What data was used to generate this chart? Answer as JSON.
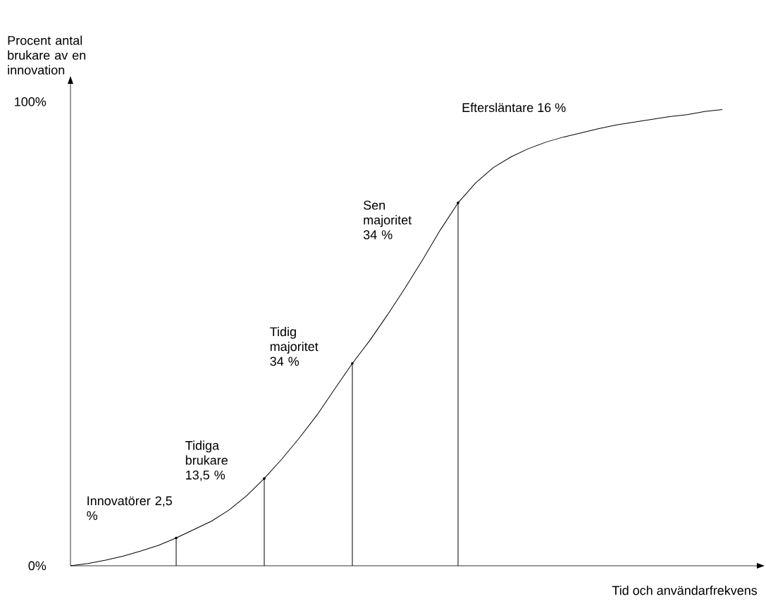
{
  "chart_data": {
    "type": "line",
    "xlabel": "Tid och användarfrekvens",
    "ylabel": "Procent antal brukare av en innovation",
    "categories": [
      null,
      null,
      null,
      null,
      null,
      null,
      null,
      null,
      null,
      null,
      null,
      null,
      null,
      null,
      null,
      null,
      null,
      null,
      null,
      null,
      null,
      null,
      null,
      null,
      null,
      null,
      null,
      null,
      null,
      null,
      null,
      null,
      null,
      null,
      null,
      null,
      null,
      null
    ],
    "series": [
      {
        "color": "#000000",
        "values": [
          0,
          0.5,
          1.2,
          2.1,
          3.2,
          4.4,
          6.0,
          7.8,
          9.6,
          12.0,
          15.1,
          18.8,
          23.0,
          27.6,
          32.5,
          38.1,
          43.6,
          48.6,
          54.1,
          59.9,
          66.0,
          72.4,
          78.2,
          82.5,
          85.8,
          88.1,
          89.9,
          91.3,
          92.4,
          93.3,
          94.2,
          95.0,
          95.6,
          96.2,
          96.8,
          97.2,
          97.9,
          98.3
        ]
      },
      {
        "type": "lollipop",
        "color": "#000000",
        "values": [
          null,
          null,
          null,
          null,
          null,
          null,
          6.0,
          null,
          null,
          null,
          null,
          18.8,
          null,
          null,
          null,
          null,
          43.6,
          null,
          null,
          null,
          null,
          null,
          78.2,
          null,
          null,
          null,
          null,
          null,
          null,
          null,
          null,
          null,
          null,
          null,
          null,
          null,
          null,
          null
        ]
      }
    ],
    "ylim": [
      0,
      104
    ],
    "yticks": [
      {
        "value": 0,
        "label": "0%"
      },
      {
        "value": 100,
        "label": "100%"
      }
    ],
    "marker": "none",
    "line_style": "solid",
    "grid": false,
    "annotations": [
      "Innovatörer 2,5 %",
      "Tidiga brukare 13,5 %",
      "Tidig majoritet 34 %",
      "Sen majoritet 34 %",
      "Eftersläntare 16 %"
    ]
  }
}
